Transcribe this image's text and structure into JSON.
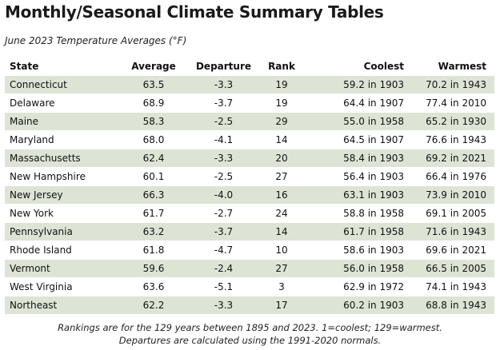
{
  "page": {
    "title": "Monthly/Seasonal Climate Summary Tables",
    "subtitle": "June 2023 Temperature Averages (°F)"
  },
  "table": {
    "headers": {
      "state": "State",
      "average": "Average",
      "departure": "Departure",
      "rank": "Rank",
      "coolest": "Coolest",
      "warmest": "Warmest"
    },
    "rows": [
      {
        "state": "Connecticut",
        "average": "63.5",
        "departure": "-3.3",
        "rank": "19",
        "coolest": "59.2 in 1903",
        "warmest": "70.2 in 1943"
      },
      {
        "state": "Delaware",
        "average": "68.9",
        "departure": "-3.7",
        "rank": "19",
        "coolest": "64.4 in 1907",
        "warmest": "77.4 in 2010"
      },
      {
        "state": "Maine",
        "average": "58.3",
        "departure": "-2.5",
        "rank": "29",
        "coolest": "55.0 in 1958",
        "warmest": "65.2 in 1930"
      },
      {
        "state": "Maryland",
        "average": "68.0",
        "departure": "-4.1",
        "rank": "14",
        "coolest": "64.5 in 1907",
        "warmest": "76.6 in 1943"
      },
      {
        "state": "Massachusetts",
        "average": "62.4",
        "departure": "-3.3",
        "rank": "20",
        "coolest": "58.4 in 1903",
        "warmest": "69.2 in 2021"
      },
      {
        "state": "New Hampshire",
        "average": "60.1",
        "departure": "-2.5",
        "rank": "27",
        "coolest": "56.4 in 1903",
        "warmest": "66.4 in 1976"
      },
      {
        "state": "New Jersey",
        "average": "66.3",
        "departure": "-4.0",
        "rank": "16",
        "coolest": "63.1 in 1903",
        "warmest": "73.9 in 2010"
      },
      {
        "state": "New York",
        "average": "61.7",
        "departure": "-2.7",
        "rank": "24",
        "coolest": "58.8 in 1958",
        "warmest": "69.1 in 2005"
      },
      {
        "state": "Pennsylvania",
        "average": "63.2",
        "departure": "-3.7",
        "rank": "14",
        "coolest": "61.7 in 1958",
        "warmest": "71.6 in 1943"
      },
      {
        "state": "Rhode Island",
        "average": "61.8",
        "departure": "-4.7",
        "rank": "10",
        "coolest": "58.6 in 1903",
        "warmest": "69.6 in 2021"
      },
      {
        "state": "Vermont",
        "average": "59.6",
        "departure": "-2.4",
        "rank": "27",
        "coolest": "56.0 in 1958",
        "warmest": "66.5 in 2005"
      },
      {
        "state": "West Virginia",
        "average": "63.6",
        "departure": "-5.1",
        "rank": "3",
        "coolest": "62.9 in 1972",
        "warmest": "74.1 in 1943"
      },
      {
        "state": "Northeast",
        "average": "62.2",
        "departure": "-3.3",
        "rank": "17",
        "coolest": "60.2 in 1903",
        "warmest": "68.8 in 1943"
      }
    ],
    "stripe_color": "#dde4d5"
  },
  "footnotes": {
    "line1": "Rankings are for the 129 years between 1895 and 2023. 1=coolest; 129=warmest.",
    "line2": "Departures are calculated using the 1991-2020 normals."
  }
}
